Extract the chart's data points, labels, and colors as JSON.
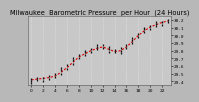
{
  "title": "Milwaukee  Barometric Pressure  per Hour  (24 Hours)",
  "hours": [
    0,
    1,
    2,
    3,
    4,
    5,
    6,
    7,
    8,
    9,
    10,
    11,
    12,
    13,
    14,
    15,
    16,
    17,
    18,
    19,
    20,
    21,
    22,
    23
  ],
  "pressure": [
    29.42,
    29.43,
    29.44,
    29.45,
    29.47,
    29.52,
    29.58,
    29.65,
    29.72,
    29.76,
    29.8,
    29.83,
    29.85,
    29.82,
    29.79,
    29.8,
    29.85,
    29.92,
    30.0,
    30.06,
    30.11,
    30.14,
    30.17,
    30.19
  ],
  "scatter_data": [
    [
      0,
      29.4
    ],
    [
      0,
      29.43
    ],
    [
      0,
      29.38
    ],
    [
      1,
      29.42
    ],
    [
      1,
      29.45
    ],
    [
      2,
      29.44
    ],
    [
      2,
      29.41
    ],
    [
      3,
      29.47
    ],
    [
      3,
      29.43
    ],
    [
      4,
      29.5
    ],
    [
      4,
      29.46
    ],
    [
      5,
      29.55
    ],
    [
      5,
      29.5
    ],
    [
      5,
      29.57
    ],
    [
      6,
      29.61
    ],
    [
      6,
      29.56
    ],
    [
      7,
      29.68
    ],
    [
      7,
      29.63
    ],
    [
      7,
      29.7
    ],
    [
      8,
      29.75
    ],
    [
      8,
      29.7
    ],
    [
      9,
      29.78
    ],
    [
      9,
      29.74
    ],
    [
      9,
      29.8
    ],
    [
      10,
      29.82
    ],
    [
      10,
      29.78
    ],
    [
      11,
      29.85
    ],
    [
      11,
      29.82
    ],
    [
      11,
      29.88
    ],
    [
      12,
      29.87
    ],
    [
      12,
      29.83
    ],
    [
      13,
      29.82
    ],
    [
      13,
      29.85
    ],
    [
      13,
      29.79
    ],
    [
      14,
      29.78
    ],
    [
      14,
      29.81
    ],
    [
      15,
      29.8
    ],
    [
      15,
      29.77
    ],
    [
      15,
      29.83
    ],
    [
      16,
      29.87
    ],
    [
      16,
      29.83
    ],
    [
      17,
      29.94
    ],
    [
      17,
      29.9
    ],
    [
      17,
      29.97
    ],
    [
      18,
      30.02
    ],
    [
      18,
      29.98
    ],
    [
      19,
      30.08
    ],
    [
      19,
      30.04
    ],
    [
      19,
      30.1
    ],
    [
      20,
      30.12
    ],
    [
      20,
      30.08
    ],
    [
      21,
      30.15
    ],
    [
      21,
      30.12
    ],
    [
      21,
      30.17
    ],
    [
      22,
      30.18
    ],
    [
      22,
      30.14
    ],
    [
      23,
      30.2
    ],
    [
      23,
      30.17
    ]
  ],
  "ylim": [
    29.35,
    30.25
  ],
  "yticks": [
    29.4,
    29.5,
    29.6,
    29.7,
    29.8,
    29.9,
    30.0,
    30.1,
    30.2
  ],
  "ytick_labels": [
    "29.4",
    "29.5",
    "29.6",
    "29.7",
    "29.8",
    "29.9",
    "30.0",
    "30.1",
    "30.2"
  ],
  "xticks": [
    0,
    2,
    4,
    6,
    8,
    10,
    12,
    14,
    16,
    18,
    20,
    22
  ],
  "xtick_labels": [
    "0",
    "2",
    "4",
    "6",
    "8",
    "10",
    "12",
    "14",
    "16",
    "18",
    "20",
    "22"
  ],
  "bg_color": "#b8b8b8",
  "plot_bg_color": "#c8c8c8",
  "line_color": "#dd0000",
  "scatter_color": "#111111",
  "grid_color": "#e8e8e8",
  "title_color": "#000000",
  "title_fontsize": 4.8
}
